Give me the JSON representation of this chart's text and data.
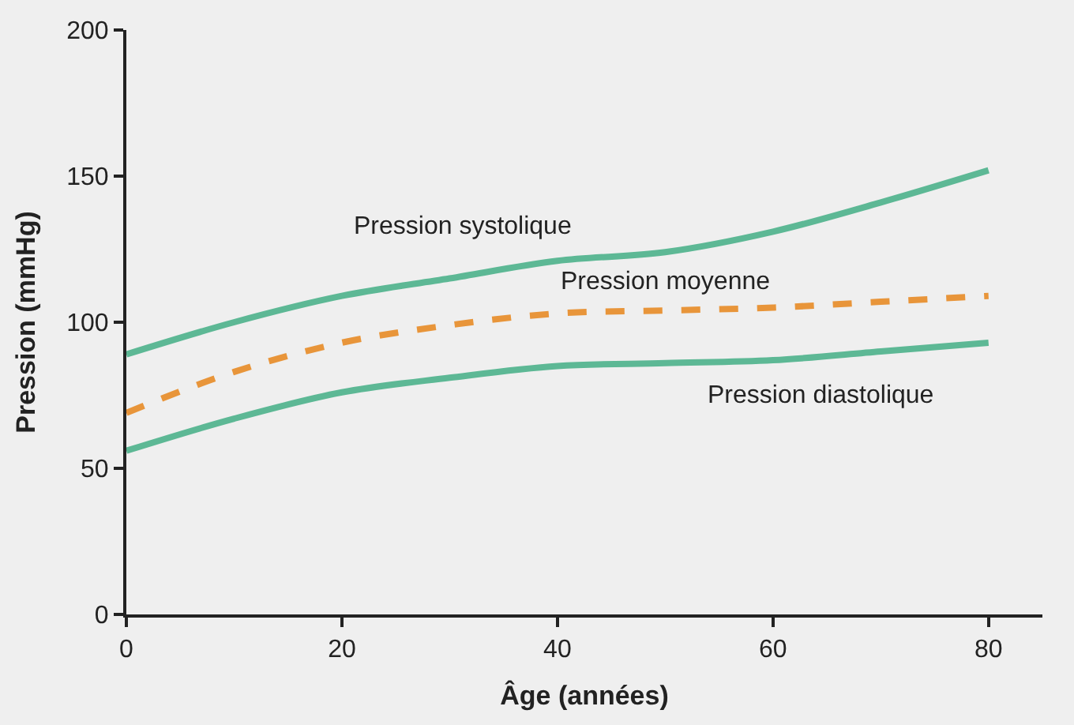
{
  "chart_data": {
    "type": "line",
    "xlabel": "Âge (années)",
    "ylabel": "Pression (mmHg)",
    "x": [
      0,
      10,
      20,
      30,
      40,
      50,
      60,
      70,
      80
    ],
    "xlim": [
      0,
      85
    ],
    "xticks": [
      0,
      20,
      40,
      60,
      80
    ],
    "ylim": [
      0,
      200
    ],
    "yticks": [
      0,
      50,
      100,
      150,
      200
    ],
    "grid": false,
    "legend": false,
    "series": [
      {
        "name": "Pression systolique",
        "color": "#5db895",
        "values": [
          89,
          100,
          109,
          115,
          121,
          124,
          131,
          141,
          152
        ]
      },
      {
        "name": "Pression moyenne",
        "color": "#e8953a",
        "line_style": "dashed",
        "values": [
          69,
          83,
          93,
          99,
          103,
          104,
          105,
          107,
          109
        ]
      },
      {
        "name": "Pression diastolique",
        "color": "#5db895",
        "values": [
          56,
          67,
          76,
          81,
          85,
          86,
          87,
          90,
          93
        ]
      }
    ]
  }
}
